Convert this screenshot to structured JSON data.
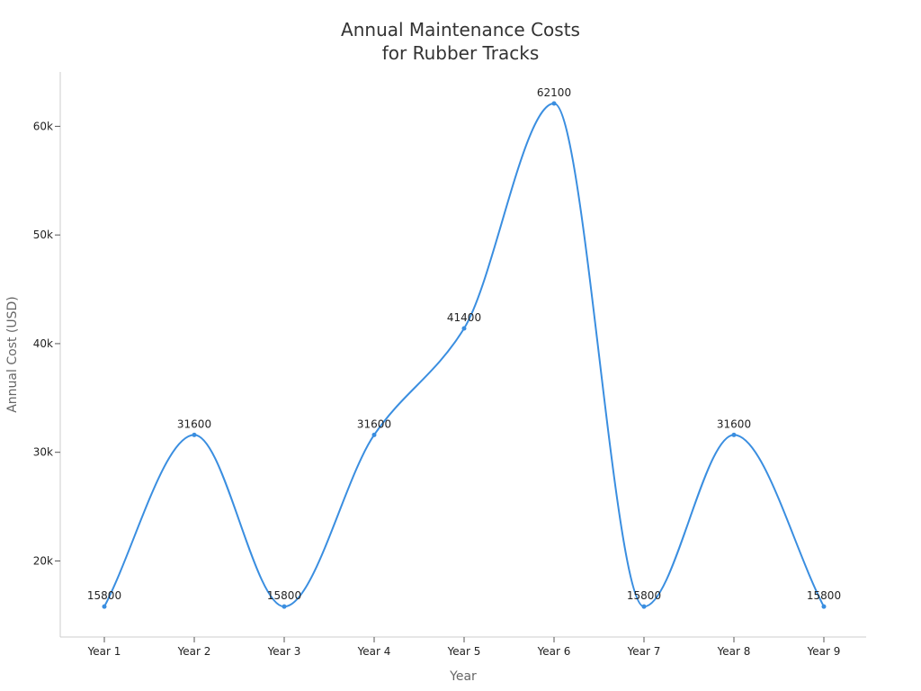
{
  "chart_data": {
    "type": "line",
    "title_line1": "Annual Maintenance Costs",
    "title_line2": "for Rubber Tracks",
    "xlabel": "Year",
    "ylabel": "Annual Cost (USD)",
    "categories": [
      "Year 1",
      "Year 2",
      "Year 3",
      "Year 4",
      "Year 5",
      "Year 6",
      "Year 7",
      "Year 8",
      "Year 9"
    ],
    "values": [
      15800,
      31600,
      15800,
      31600,
      41400,
      62100,
      15800,
      31600,
      15800
    ],
    "ylim": [
      13000,
      65000
    ],
    "y_ticks": [
      20000,
      30000,
      40000,
      50000,
      60000
    ],
    "y_tick_labels": [
      "20k",
      "30k",
      "40k",
      "50k",
      "60k"
    ],
    "smooth": true,
    "grid": false,
    "legend": "none",
    "line_color": "#3a8ee0"
  }
}
